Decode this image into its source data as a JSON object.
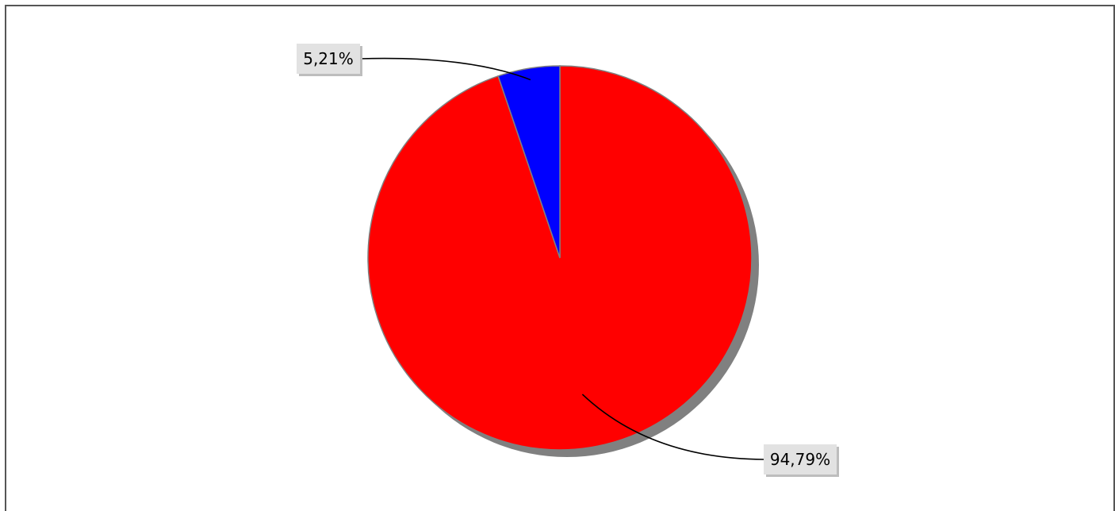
{
  "chart_data": {
    "type": "pie",
    "title": "",
    "start_angle_deg": 90,
    "direction": "clockwise",
    "shadow": true,
    "slices": [
      {
        "label": "94,79%",
        "value": 94.79,
        "color": "#ff0000"
      },
      {
        "label": "5,21%",
        "value": 5.21,
        "color": "#0000ff"
      }
    ]
  },
  "colors": {
    "background": "#ffffff",
    "frame": "#555555",
    "shadow": "#808080",
    "slice_outline": "#808080",
    "label_box": "#e2e2e2",
    "leader_line": "#000000"
  }
}
